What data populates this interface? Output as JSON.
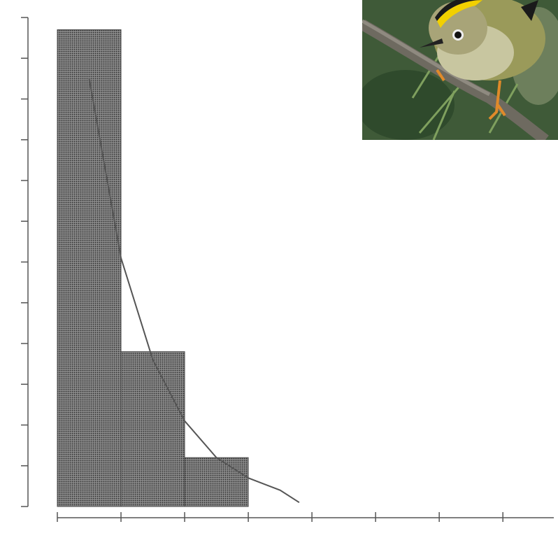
{
  "chart_data": {
    "type": "histogram",
    "bins": [
      0,
      1,
      2,
      3
    ],
    "values": [
      11.7,
      3.8,
      1.2
    ],
    "color": "#4a4a4a",
    "xlim": [
      0,
      7.8
    ],
    "xticks": [
      0,
      1,
      2,
      3,
      4,
      5,
      6,
      7
    ],
    "ylim": [
      0,
      12
    ],
    "yticks": [
      0,
      1,
      2,
      3,
      4,
      5,
      6,
      7,
      8,
      9,
      10,
      11,
      12
    ],
    "curve": {
      "x": [
        0.5,
        1,
        1.5,
        2,
        2.5,
        3,
        3.5,
        3.8
      ],
      "values": [
        10.5,
        6.1,
        3.6,
        2.1,
        1.2,
        0.7,
        0.4,
        0.1
      ],
      "color": "#555555"
    }
  }
}
